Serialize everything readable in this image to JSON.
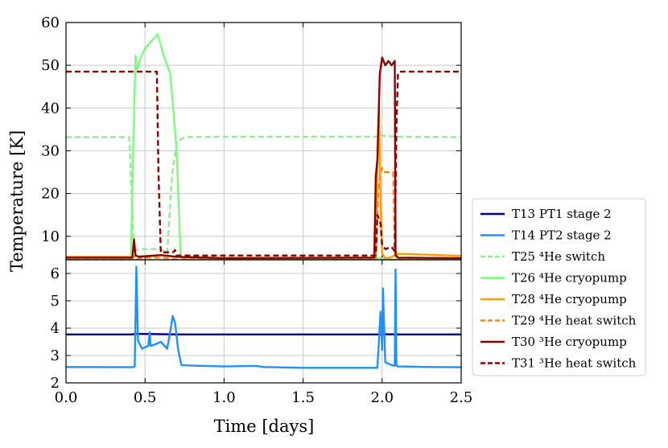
{
  "chart_data": {
    "type": "line",
    "xlabel": "Time [days]",
    "ylabel": "Temperature [K]",
    "xlim": [
      0.0,
      2.5
    ],
    "x_ticks": [
      "0.0",
      "0.5",
      "1.0",
      "1.5",
      "2.0",
      "2.5"
    ],
    "grid": true,
    "legend_placement": "right-outside",
    "panels": [
      {
        "name": "upper",
        "ylim": [
          4.5,
          60
        ],
        "y_ticks": [
          "10",
          "20",
          "30",
          "40",
          "50",
          "60"
        ]
      },
      {
        "name": "lower",
        "ylim": [
          2,
          6.5
        ],
        "y_ticks": [
          "2",
          "3",
          "4",
          "5",
          "6"
        ]
      }
    ],
    "series": [
      {
        "name": "T13 PT1 stage 2",
        "color": "#00008b",
        "dash": "solid",
        "panel": "lower",
        "x": [
          0,
          0.42,
          0.44,
          0.6,
          0.7,
          1.0,
          1.98,
          2.0,
          2.1,
          2.5
        ],
        "y": [
          3.77,
          3.77,
          3.79,
          3.78,
          3.77,
          3.77,
          3.77,
          3.78,
          3.77,
          3.77
        ]
      },
      {
        "name": "T14 PT2 stage 2",
        "color": "#1e90ff",
        "dash": "solid",
        "panel": "lower",
        "x": [
          0,
          0.42,
          0.435,
          0.445,
          0.455,
          0.48,
          0.52,
          0.53,
          0.535,
          0.56,
          0.6,
          0.64,
          0.66,
          0.675,
          0.69,
          0.71,
          0.73,
          0.8,
          1.0,
          1.2,
          1.25,
          1.5,
          1.97,
          1.98,
          1.99,
          2.0,
          2.005,
          2.02,
          2.06,
          2.08,
          2.085,
          2.09,
          2.1,
          2.3,
          2.5
        ],
        "y": [
          2.58,
          2.57,
          2.6,
          6.25,
          3.55,
          3.25,
          3.35,
          3.85,
          3.35,
          3.4,
          3.5,
          3.25,
          3.9,
          4.45,
          4.2,
          3.2,
          2.65,
          2.63,
          2.6,
          2.62,
          2.58,
          2.55,
          2.55,
          3.6,
          4.6,
          3.2,
          5.45,
          2.75,
          2.65,
          2.62,
          6.15,
          2.65,
          2.6,
          2.58,
          2.57
        ]
      },
      {
        "name": "T25 ⁴He switch",
        "color": "#90ee90",
        "dash": "dashed",
        "panel": "upper",
        "x": [
          0,
          0.4,
          0.415,
          0.43,
          0.46,
          0.6,
          0.64,
          0.655,
          0.67,
          0.7,
          0.75,
          1.0,
          1.9,
          1.97,
          1.985,
          2.0,
          2.1,
          2.5
        ],
        "y": [
          33.2,
          33.2,
          20,
          6.5,
          7.0,
          7.0,
          6.0,
          15,
          24,
          32,
          33.2,
          33.3,
          33.3,
          33.3,
          34,
          33.5,
          33.3,
          33.2
        ]
      },
      {
        "name": "T26 ⁴He cryopump",
        "color": "#7cfc7c",
        "dash": "solid",
        "panel": "upper",
        "x": [
          0,
          0.41,
          0.425,
          0.44,
          0.45,
          0.47,
          0.5,
          0.55,
          0.58,
          0.62,
          0.66,
          0.7,
          0.725,
          0.74,
          0.8,
          1.0,
          1.97,
          1.985,
          2.0,
          2.1,
          2.5
        ],
        "y": [
          4.7,
          4.6,
          30,
          52.2,
          49,
          51.5,
          54,
          56,
          57.3,
          52,
          48,
          30,
          5.5,
          4.8,
          4.8,
          4.7,
          4.8,
          5.0,
          4.7,
          4.6,
          4.6
        ]
      },
      {
        "name": "T28 ⁴He cryopump",
        "color": "#ff9a00",
        "dash": "solid",
        "panel": "upper",
        "x": [
          0,
          0.43,
          0.44,
          0.46,
          0.6,
          0.7,
          1.0,
          1.96,
          1.975,
          1.98,
          1.99,
          2.0,
          2.02,
          2.05,
          2.1,
          2.2,
          2.5
        ],
        "y": [
          5.2,
          5.2,
          5.5,
          5.3,
          5.6,
          5.2,
          4.8,
          5.0,
          35,
          40.8,
          18,
          6,
          4.8,
          5.0,
          5.9,
          5.8,
          5.4
        ]
      },
      {
        "name": "T29 ⁴He heat switch",
        "color": "#ff8c00",
        "dash": "dashed",
        "panel": "upper",
        "x": [
          0,
          0.43,
          0.5,
          0.6,
          0.7,
          1.0,
          1.96,
          1.975,
          1.99,
          2.0,
          2.01,
          2.07,
          2.08,
          2.1,
          2.5
        ],
        "y": [
          4.5,
          4.5,
          5.0,
          5.0,
          4.6,
          4.5,
          4.5,
          20,
          25,
          26,
          25,
          25,
          7,
          4.6,
          4.5
        ]
      },
      {
        "name": "T30 ³He cryopump",
        "color": "#8b0000",
        "dash": "solid",
        "panel": "upper",
        "x": [
          0,
          0.42,
          0.43,
          0.44,
          0.46,
          0.6,
          0.7,
          0.8,
          1.0,
          1.95,
          1.96,
          1.97,
          1.985,
          2.0,
          2.02,
          2.04,
          2.06,
          2.08,
          2.085,
          2.1,
          2.5
        ],
        "y": [
          5.0,
          5.0,
          9.3,
          5.5,
          5.2,
          5.6,
          5.2,
          5.1,
          4.9,
          5.0,
          24,
          28,
          48,
          51.8,
          50,
          51,
          50,
          51,
          5.5,
          5.0,
          4.9
        ]
      },
      {
        "name": "T31 ³He heat switch",
        "color": "#8b0000",
        "dash": "dashed",
        "panel": "upper",
        "x": [
          0,
          0.575,
          0.585,
          0.6,
          0.68,
          0.69,
          0.7,
          1.96,
          1.97,
          1.98,
          1.99,
          2.0,
          2.02,
          2.06,
          2.08,
          2.09,
          2.1,
          2.11,
          2.5
        ],
        "y": [
          48.5,
          48.5,
          25,
          6.2,
          6.3,
          6.8,
          5.5,
          5.5,
          15,
          14,
          13,
          8,
          7,
          7.5,
          6.5,
          35,
          48,
          48.5,
          48.5
        ]
      }
    ]
  }
}
